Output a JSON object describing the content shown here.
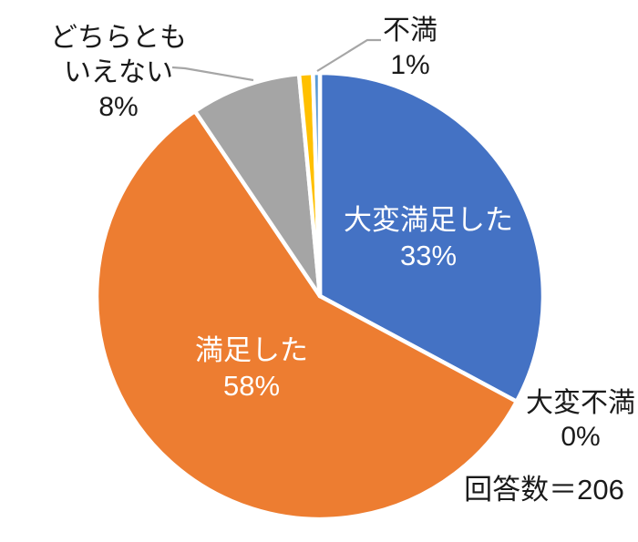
{
  "chart_data": {
    "type": "pie",
    "title": "",
    "legend": "none",
    "start_angle_deg": 0,
    "clockwise": true,
    "note": "回答数＝206",
    "slices": [
      {
        "label": "大変満足した",
        "display_percent": "33%",
        "value": 33,
        "color": "#4472C4",
        "label_position": "inside"
      },
      {
        "label": "満足した",
        "display_percent": "58%",
        "value": 58,
        "color": "#ED7D31",
        "label_position": "inside"
      },
      {
        "label": "どちらともいえない",
        "display_percent": "8%",
        "value": 8,
        "color": "#A5A5A5",
        "label_position": "outside-callout"
      },
      {
        "label": "不満",
        "display_percent": "1%",
        "value": 1,
        "color": "#FFC000",
        "label_position": "outside-callout"
      },
      {
        "label": "大変不満",
        "display_percent": "0%",
        "value": 0.5,
        "color": "#5B9BD5",
        "label_position": "outside"
      }
    ]
  },
  "callouts": {
    "very_satisfied": "大変満足した\n33%",
    "satisfied": "満足した\n58%",
    "neither": "どちらとも\nいえない\n8%",
    "dissatisfied": "不満\n1%",
    "very_dissatisfied": "大変不満\n0%",
    "respondents_note": "回答数＝206"
  },
  "colors": {
    "very_satisfied": "#4472C4",
    "satisfied": "#ED7D31",
    "neither": "#A5A5A5",
    "dissatisfied": "#FFC000",
    "very_dissatisfied": "#5B9BD5",
    "slice_border": "#FFFFFF",
    "leader_line": "#A6A6A6",
    "text": "#1A1A1A",
    "label_text_light": "#FFFFFF",
    "background": "#FFFFFF"
  }
}
